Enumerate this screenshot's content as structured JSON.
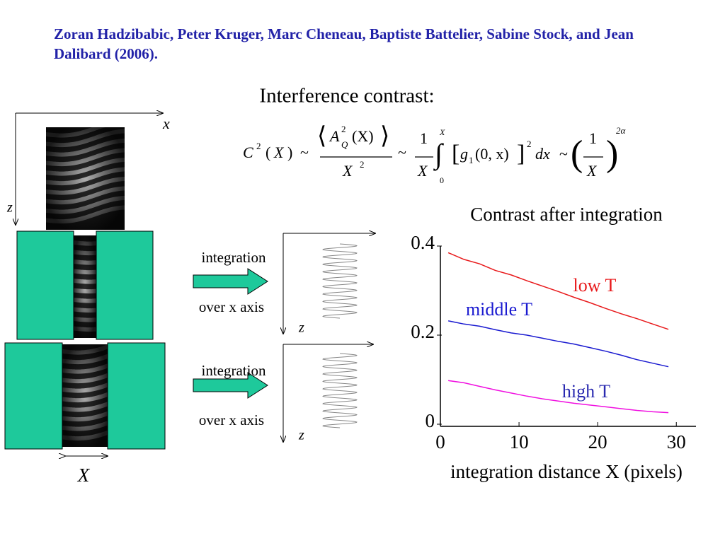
{
  "citation": "Zoran Hadzibabic, Peter Kruger, Marc Cheneau, Baptiste Battelier, Sabine Stock, and Jean Dalibard (2006).",
  "heading": "Interference contrast:",
  "formula": [
    "C",
    "2",
    "(",
    "X",
    ")",
    "~",
    "⟨",
    "A",
    "2",
    "Q",
    "(X)",
    "⟩",
    "X",
    "2",
    "~",
    "1",
    "X",
    "∫",
    "X",
    "0",
    "[",
    "g",
    "1",
    "(0, x)",
    "]",
    "2",
    "dx",
    "~",
    "(",
    "1",
    "X",
    ")",
    "2α"
  ],
  "diagram": {
    "axis_x": "x",
    "axis_z": "z",
    "steps": [
      {
        "line1": "integration",
        "line2": "over x axis",
        "axis": "z"
      },
      {
        "line1": "integration",
        "line2": "over x axis",
        "axis": "z"
      }
    ],
    "width_label": "X"
  },
  "chart_data": {
    "type": "line",
    "title": "Contrast after integration",
    "x_label": "integration distance X (pixels)",
    "x": [
      1,
      3,
      5,
      7,
      9,
      11,
      13,
      15,
      17,
      19,
      21,
      23,
      25,
      27,
      29
    ],
    "series": [
      {
        "name": "low T",
        "color": "#e8191b",
        "label_color": "#e8191b",
        "values": [
          0.385,
          0.37,
          0.36,
          0.345,
          0.335,
          0.322,
          0.31,
          0.298,
          0.285,
          0.273,
          0.26,
          0.248,
          0.237,
          0.225,
          0.213
        ]
      },
      {
        "name": "middle T",
        "color": "#1a1ad0",
        "label_color": "#1a1ad0",
        "values": [
          0.232,
          0.225,
          0.22,
          0.212,
          0.205,
          0.2,
          0.193,
          0.186,
          0.18,
          0.172,
          0.164,
          0.155,
          0.145,
          0.137,
          0.129
        ]
      },
      {
        "name": "high T",
        "color": "#f010e0",
        "label_color": "#2a2ab0",
        "values": [
          0.098,
          0.093,
          0.085,
          0.077,
          0.07,
          0.063,
          0.057,
          0.052,
          0.047,
          0.043,
          0.039,
          0.035,
          0.031,
          0.028,
          0.026
        ]
      }
    ],
    "xlim": [
      0,
      32.5
    ],
    "ylim": [
      0,
      0.4
    ],
    "xticks": [
      0,
      10,
      20,
      30
    ],
    "yticks": [
      0,
      0.2,
      0.4
    ],
    "grid": false
  }
}
